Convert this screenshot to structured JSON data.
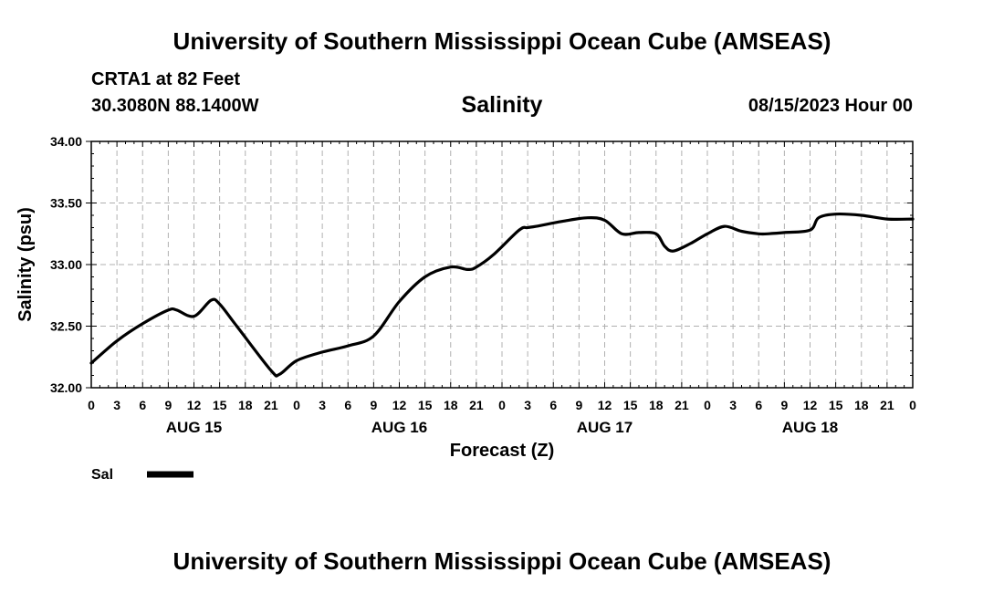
{
  "header": {
    "top_title": "University of Southern Mississippi Ocean Cube (AMSEAS)",
    "station": "CRTA1 at 82 Feet",
    "coords": "30.3080N  88.1400W",
    "plot_title": "Salinity",
    "datetime": "08/15/2023 Hour 00"
  },
  "footer": {
    "bottom_title": "University of Southern Mississippi Ocean Cube (AMSEAS)"
  },
  "legend": {
    "label": "Sal"
  },
  "chart_data": {
    "type": "line",
    "title": "Salinity",
    "xlabel": "Forecast (Z)",
    "ylabel": "Salinity (psu)",
    "ylim": [
      32.0,
      34.0
    ],
    "yticks": [
      32.0,
      32.5,
      33.0,
      33.5,
      34.0
    ],
    "ytick_labels": [
      "32.00",
      "32.50",
      "33.00",
      "33.50",
      "34.00"
    ],
    "xlim": [
      0,
      96
    ],
    "xtick_labels": [
      "0",
      "3",
      "6",
      "9",
      "12",
      "15",
      "18",
      "21",
      "0",
      "3",
      "6",
      "9",
      "12",
      "15",
      "18",
      "21",
      "0",
      "3",
      "6",
      "9",
      "12",
      "15",
      "18",
      "21",
      "0",
      "3",
      "6",
      "9",
      "12",
      "15",
      "18",
      "21",
      "0"
    ],
    "day_labels": [
      {
        "label": "AUG 15",
        "hour": 12
      },
      {
        "label": "AUG 16",
        "hour": 36
      },
      {
        "label": "AUG 17",
        "hour": 60
      },
      {
        "label": "AUG 18",
        "hour": 84
      }
    ],
    "grid": true,
    "series": [
      {
        "name": "Sal",
        "color": "#000000",
        "x": [
          0,
          3,
          6,
          9,
          10,
          12,
          14,
          15,
          17,
          21,
          22,
          24,
          27,
          30,
          33,
          36,
          39,
          42,
          44,
          45,
          47,
          50,
          51,
          52,
          55,
          58,
          60,
          62,
          64,
          66,
          67,
          68,
          70,
          72,
          74,
          76,
          78,
          79,
          81,
          84,
          85,
          87,
          90,
          93,
          96
        ],
        "values": [
          32.2,
          32.38,
          32.52,
          32.63,
          32.63,
          32.58,
          32.71,
          32.68,
          32.5,
          32.14,
          32.11,
          32.22,
          32.29,
          32.34,
          32.42,
          32.7,
          32.9,
          32.98,
          32.96,
          32.98,
          33.08,
          33.28,
          33.3,
          33.31,
          33.35,
          33.38,
          33.36,
          33.25,
          33.26,
          33.25,
          33.15,
          33.11,
          33.17,
          33.25,
          33.31,
          33.27,
          33.25,
          33.25,
          33.26,
          33.28,
          33.38,
          33.41,
          33.4,
          33.37,
          33.37
        ]
      }
    ]
  }
}
